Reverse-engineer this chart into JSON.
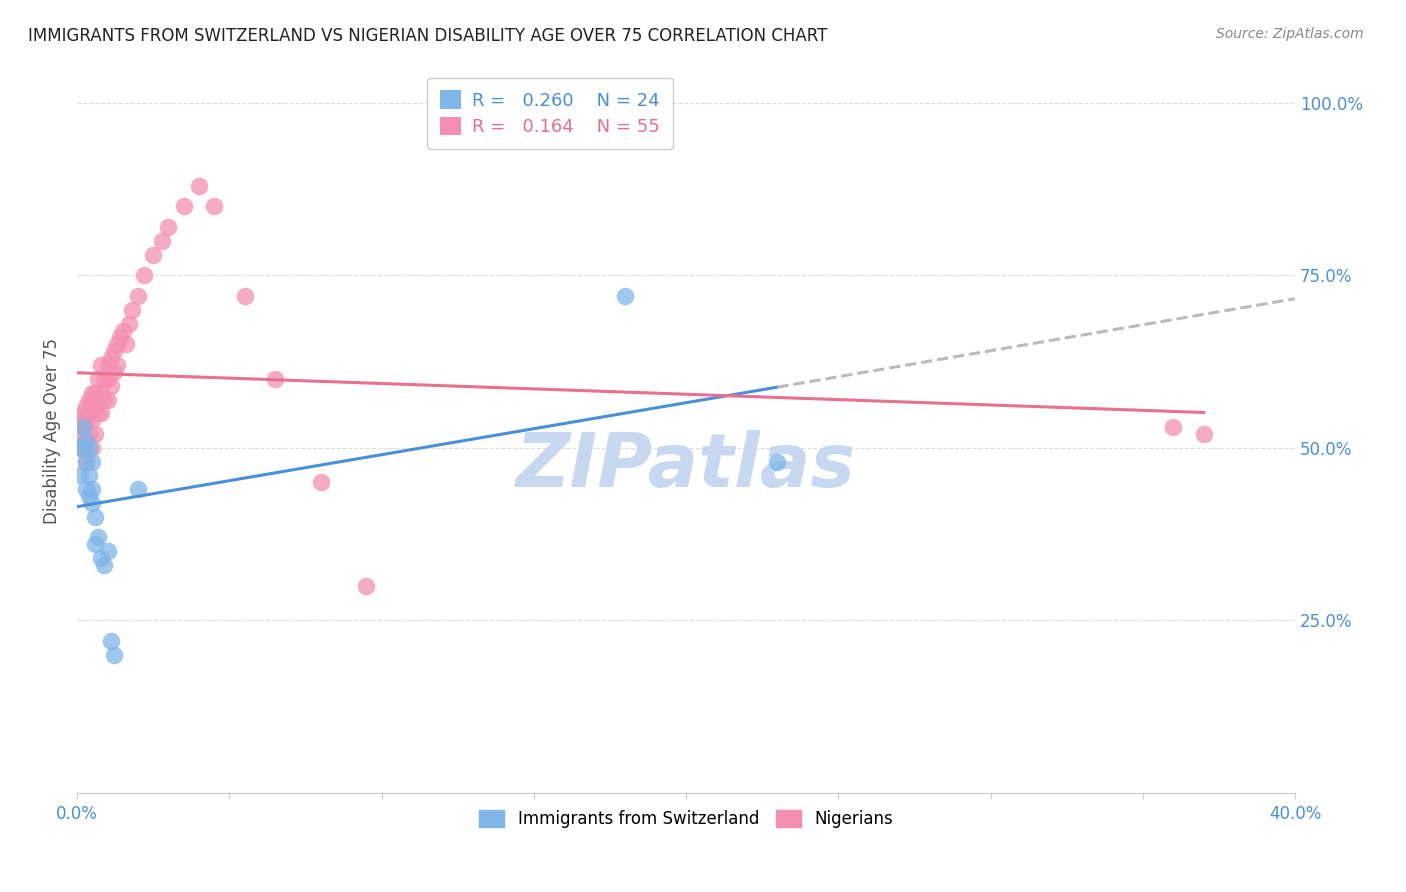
{
  "title": "IMMIGRANTS FROM SWITZERLAND VS NIGERIAN DISABILITY AGE OVER 75 CORRELATION CHART",
  "source": "Source: ZipAtlas.com",
  "ylabel": "Disability Age Over 75",
  "xlim": [
    0.0,
    0.4
  ],
  "ylim": [
    0.0,
    1.05
  ],
  "background_color": "#ffffff",
  "grid_color": "#dddddd",
  "swiss_R": 0.26,
  "swiss_N": 24,
  "nigerian_R": 0.164,
  "nigerian_N": 55,
  "swiss_color": "#7eb6e8",
  "nigerian_color": "#f48fb1",
  "swiss_line_color": "#4a90d9",
  "nigerian_line_color": "#e87090",
  "dashed_line_color": "#bbbbbb",
  "swiss_x": [
    0.001,
    0.001,
    0.002,
    0.002,
    0.003,
    0.003,
    0.003,
    0.004,
    0.004,
    0.004,
    0.005,
    0.005,
    0.005,
    0.006,
    0.006,
    0.007,
    0.008,
    0.009,
    0.01,
    0.011,
    0.012,
    0.02,
    0.18,
    0.23
  ],
  "swiss_y": [
    0.46,
    0.5,
    0.5,
    0.53,
    0.48,
    0.51,
    0.44,
    0.5,
    0.46,
    0.43,
    0.48,
    0.44,
    0.42,
    0.4,
    0.36,
    0.37,
    0.34,
    0.33,
    0.35,
    0.22,
    0.2,
    0.44,
    0.72,
    0.48
  ],
  "nigerian_x": [
    0.001,
    0.001,
    0.001,
    0.002,
    0.002,
    0.002,
    0.003,
    0.003,
    0.003,
    0.003,
    0.004,
    0.004,
    0.004,
    0.005,
    0.005,
    0.005,
    0.005,
    0.006,
    0.006,
    0.006,
    0.007,
    0.007,
    0.008,
    0.008,
    0.008,
    0.009,
    0.009,
    0.01,
    0.01,
    0.01,
    0.011,
    0.011,
    0.012,
    0.012,
    0.013,
    0.013,
    0.014,
    0.015,
    0.016,
    0.017,
    0.018,
    0.02,
    0.022,
    0.025,
    0.028,
    0.03,
    0.035,
    0.04,
    0.045,
    0.055,
    0.065,
    0.08,
    0.095,
    0.36,
    0.37
  ],
  "nigerian_y": [
    0.54,
    0.52,
    0.5,
    0.55,
    0.53,
    0.5,
    0.56,
    0.54,
    0.51,
    0.48,
    0.57,
    0.55,
    0.52,
    0.58,
    0.56,
    0.54,
    0.5,
    0.58,
    0.56,
    0.52,
    0.6,
    0.55,
    0.62,
    0.58,
    0.55,
    0.6,
    0.57,
    0.62,
    0.6,
    0.57,
    0.63,
    0.59,
    0.64,
    0.61,
    0.65,
    0.62,
    0.66,
    0.67,
    0.65,
    0.68,
    0.7,
    0.72,
    0.75,
    0.78,
    0.8,
    0.82,
    0.85,
    0.88,
    0.85,
    0.72,
    0.6,
    0.45,
    0.3,
    0.53,
    0.52
  ],
  "watermark": "ZIPatlas",
  "watermark_color": "#c8d8f0",
  "legend_swiss_label": "Immigrants from Switzerland",
  "legend_nigerian_label": "Nigerians",
  "x_tick_positions": [
    0.0,
    0.05,
    0.1,
    0.15,
    0.2,
    0.25,
    0.3,
    0.35,
    0.4
  ],
  "y_tick_positions": [
    0.0,
    0.25,
    0.5,
    0.75,
    1.0
  ],
  "y_tick_labels_right": [
    "",
    "25.0%",
    "50.0%",
    "75.0%",
    "100.0%"
  ]
}
